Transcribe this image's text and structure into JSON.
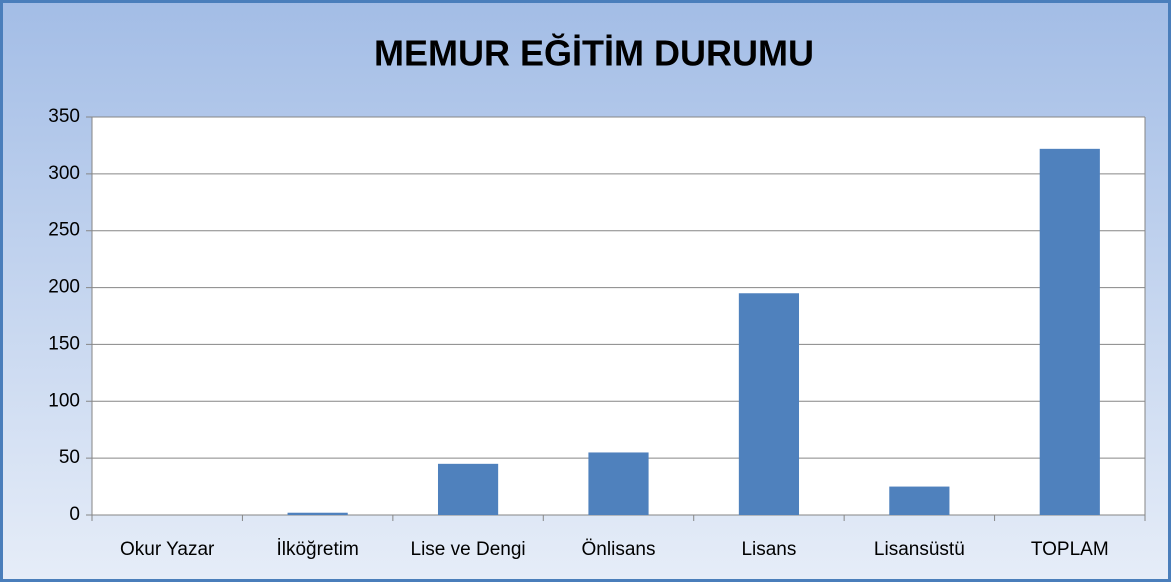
{
  "chart_data": {
    "type": "bar",
    "title": "MEMUR EĞİTİM DURUMU",
    "categories": [
      "Okur Yazar",
      "İlköğretim",
      "Lise ve Dengi",
      "Önlisans",
      "Lisans",
      "Lisansüstü",
      "TOPLAM"
    ],
    "values": [
      0,
      2,
      45,
      55,
      195,
      25,
      322
    ],
    "color": "#4f81bd",
    "ylim": [
      0,
      350
    ],
    "yticks": [
      0,
      50,
      100,
      150,
      200,
      250,
      300,
      350
    ],
    "grid": true
  }
}
